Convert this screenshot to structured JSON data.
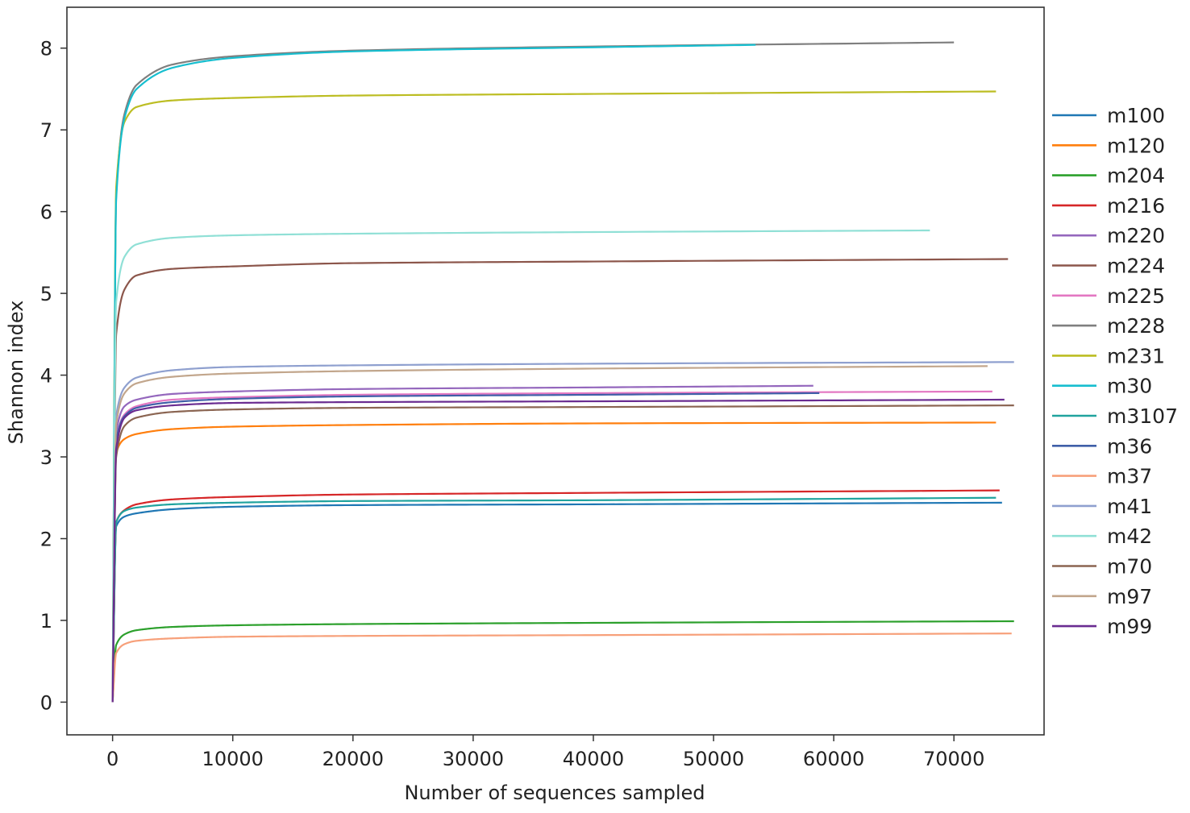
{
  "chart_data": {
    "type": "line",
    "title": "",
    "xlabel": "Number of sequences sampled",
    "ylabel": "Shannon index",
    "xlim": [
      -3800,
      77500
    ],
    "ylim": [
      -0.4,
      8.5
    ],
    "xticks": [
      0,
      10000,
      20000,
      30000,
      40000,
      50000,
      60000,
      70000
    ],
    "xtick_labels": [
      "0",
      "10000",
      "20000",
      "30000",
      "40000",
      "50000",
      "60000",
      "70000"
    ],
    "yticks": [
      0,
      1,
      2,
      3,
      4,
      5,
      6,
      7,
      8
    ],
    "ytick_labels": [
      "0",
      "1",
      "2",
      "3",
      "4",
      "5",
      "6",
      "7",
      "8"
    ],
    "grid": false,
    "legend_position": "right",
    "series": [
      {
        "name": "m100",
        "color": "#1f77b4",
        "values": [
          [
            0,
            0
          ],
          [
            300,
            2.15
          ],
          [
            1000,
            2.27
          ],
          [
            2000,
            2.31
          ],
          [
            5000,
            2.36
          ],
          [
            10000,
            2.39
          ],
          [
            20000,
            2.41
          ],
          [
            40000,
            2.42
          ],
          [
            74000,
            2.44
          ]
        ]
      },
      {
        "name": "m120",
        "color": "#ff7f0e",
        "values": [
          [
            0,
            0
          ],
          [
            300,
            3.05
          ],
          [
            1000,
            3.22
          ],
          [
            2000,
            3.28
          ],
          [
            5000,
            3.34
          ],
          [
            10000,
            3.37
          ],
          [
            20000,
            3.39
          ],
          [
            40000,
            3.41
          ],
          [
            73500,
            3.42
          ]
        ]
      },
      {
        "name": "m204",
        "color": "#2ca02c",
        "values": [
          [
            0,
            0
          ],
          [
            300,
            0.7
          ],
          [
            1000,
            0.83
          ],
          [
            2000,
            0.88
          ],
          [
            5000,
            0.92
          ],
          [
            10000,
            0.94
          ],
          [
            20000,
            0.955
          ],
          [
            40000,
            0.97
          ],
          [
            75000,
            0.99
          ]
        ]
      },
      {
        "name": "m216",
        "color": "#d62728",
        "values": [
          [
            0,
            0
          ],
          [
            300,
            2.2
          ],
          [
            1000,
            2.35
          ],
          [
            2000,
            2.42
          ],
          [
            5000,
            2.48
          ],
          [
            10000,
            2.51
          ],
          [
            20000,
            2.54
          ],
          [
            40000,
            2.56
          ],
          [
            73800,
            2.59
          ]
        ]
      },
      {
        "name": "m220",
        "color": "#9467bd",
        "values": [
          [
            0,
            0
          ],
          [
            300,
            3.3
          ],
          [
            1000,
            3.62
          ],
          [
            2000,
            3.7
          ],
          [
            5000,
            3.77
          ],
          [
            10000,
            3.8
          ],
          [
            20000,
            3.83
          ],
          [
            40000,
            3.85
          ],
          [
            58300,
            3.87
          ]
        ]
      },
      {
        "name": "m224",
        "color": "#8c564b",
        "values": [
          [
            0,
            0
          ],
          [
            300,
            4.5
          ],
          [
            1000,
            5.05
          ],
          [
            2000,
            5.22
          ],
          [
            5000,
            5.3
          ],
          [
            10000,
            5.33
          ],
          [
            20000,
            5.37
          ],
          [
            40000,
            5.39
          ],
          [
            74500,
            5.42
          ]
        ]
      },
      {
        "name": "m225",
        "color": "#e377c2",
        "values": [
          [
            0,
            0
          ],
          [
            300,
            3.2
          ],
          [
            1000,
            3.52
          ],
          [
            2000,
            3.62
          ],
          [
            5000,
            3.7
          ],
          [
            10000,
            3.73
          ],
          [
            20000,
            3.76
          ],
          [
            40000,
            3.78
          ],
          [
            73200,
            3.8
          ]
        ]
      },
      {
        "name": "m228",
        "color": "#7f7f7f",
        "values": [
          [
            0,
            0
          ],
          [
            300,
            6.2
          ],
          [
            1000,
            7.2
          ],
          [
            2000,
            7.55
          ],
          [
            5000,
            7.8
          ],
          [
            10000,
            7.9
          ],
          [
            20000,
            7.97
          ],
          [
            40000,
            8.02
          ],
          [
            70000,
            8.07
          ]
        ]
      },
      {
        "name": "m231",
        "color": "#bcbd22",
        "values": [
          [
            0,
            0
          ],
          [
            300,
            6.3
          ],
          [
            1000,
            7.1
          ],
          [
            2000,
            7.28
          ],
          [
            5000,
            7.36
          ],
          [
            10000,
            7.39
          ],
          [
            20000,
            7.42
          ],
          [
            40000,
            7.44
          ],
          [
            73500,
            7.47
          ]
        ]
      },
      {
        "name": "m30",
        "color": "#17becf",
        "values": [
          [
            0,
            0
          ],
          [
            300,
            6.15
          ],
          [
            1000,
            7.15
          ],
          [
            2000,
            7.5
          ],
          [
            5000,
            7.76
          ],
          [
            10000,
            7.88
          ],
          [
            20000,
            7.96
          ],
          [
            40000,
            8.01
          ],
          [
            53500,
            8.04
          ]
        ]
      },
      {
        "name": "m3107",
        "color": "#20a39e",
        "values": [
          [
            0,
            0
          ],
          [
            300,
            2.2
          ],
          [
            1000,
            2.34
          ],
          [
            2000,
            2.38
          ],
          [
            5000,
            2.42
          ],
          [
            10000,
            2.44
          ],
          [
            20000,
            2.46
          ],
          [
            40000,
            2.47
          ],
          [
            73500,
            2.5
          ]
        ]
      },
      {
        "name": "m36",
        "color": "#3f5fa8",
        "values": [
          [
            0,
            0
          ],
          [
            300,
            3.2
          ],
          [
            1000,
            3.5
          ],
          [
            2000,
            3.6
          ],
          [
            5000,
            3.67
          ],
          [
            10000,
            3.71
          ],
          [
            20000,
            3.74
          ],
          [
            40000,
            3.76
          ],
          [
            58800,
            3.78
          ]
        ]
      },
      {
        "name": "m37",
        "color": "#f7a07a",
        "values": [
          [
            0,
            0
          ],
          [
            300,
            0.6
          ],
          [
            1000,
            0.71
          ],
          [
            2000,
            0.75
          ],
          [
            5000,
            0.78
          ],
          [
            10000,
            0.8
          ],
          [
            20000,
            0.81
          ],
          [
            40000,
            0.82
          ],
          [
            74800,
            0.84
          ]
        ]
      },
      {
        "name": "m41",
        "color": "#8fa0cf",
        "values": [
          [
            0,
            0
          ],
          [
            300,
            3.5
          ],
          [
            1000,
            3.85
          ],
          [
            2000,
            3.97
          ],
          [
            5000,
            4.06
          ],
          [
            10000,
            4.1
          ],
          [
            20000,
            4.12
          ],
          [
            40000,
            4.14
          ],
          [
            75000,
            4.16
          ]
        ]
      },
      {
        "name": "m42",
        "color": "#90e0d6",
        "values": [
          [
            0,
            0
          ],
          [
            300,
            4.9
          ],
          [
            1000,
            5.45
          ],
          [
            2000,
            5.6
          ],
          [
            5000,
            5.68
          ],
          [
            10000,
            5.71
          ],
          [
            20000,
            5.73
          ],
          [
            40000,
            5.75
          ],
          [
            68000,
            5.77
          ]
        ]
      },
      {
        "name": "m70",
        "color": "#8b6552",
        "values": [
          [
            0,
            0
          ],
          [
            300,
            3.0
          ],
          [
            1000,
            3.38
          ],
          [
            2000,
            3.48
          ],
          [
            5000,
            3.55
          ],
          [
            10000,
            3.58
          ],
          [
            20000,
            3.6
          ],
          [
            40000,
            3.61
          ],
          [
            75000,
            3.63
          ]
        ]
      },
      {
        "name": "m97",
        "color": "#c2a68c",
        "values": [
          [
            0,
            0
          ],
          [
            300,
            3.4
          ],
          [
            1000,
            3.78
          ],
          [
            2000,
            3.9
          ],
          [
            5000,
            3.98
          ],
          [
            10000,
            4.02
          ],
          [
            20000,
            4.05
          ],
          [
            40000,
            4.08
          ],
          [
            72800,
            4.11
          ]
        ]
      },
      {
        "name": "m99",
        "color": "#6a2c91",
        "values": [
          [
            0,
            0
          ],
          [
            300,
            3.1
          ],
          [
            1000,
            3.48
          ],
          [
            2000,
            3.57
          ],
          [
            5000,
            3.63
          ],
          [
            10000,
            3.66
          ],
          [
            20000,
            3.67
          ],
          [
            40000,
            3.68
          ],
          [
            74200,
            3.7
          ]
        ]
      }
    ]
  }
}
